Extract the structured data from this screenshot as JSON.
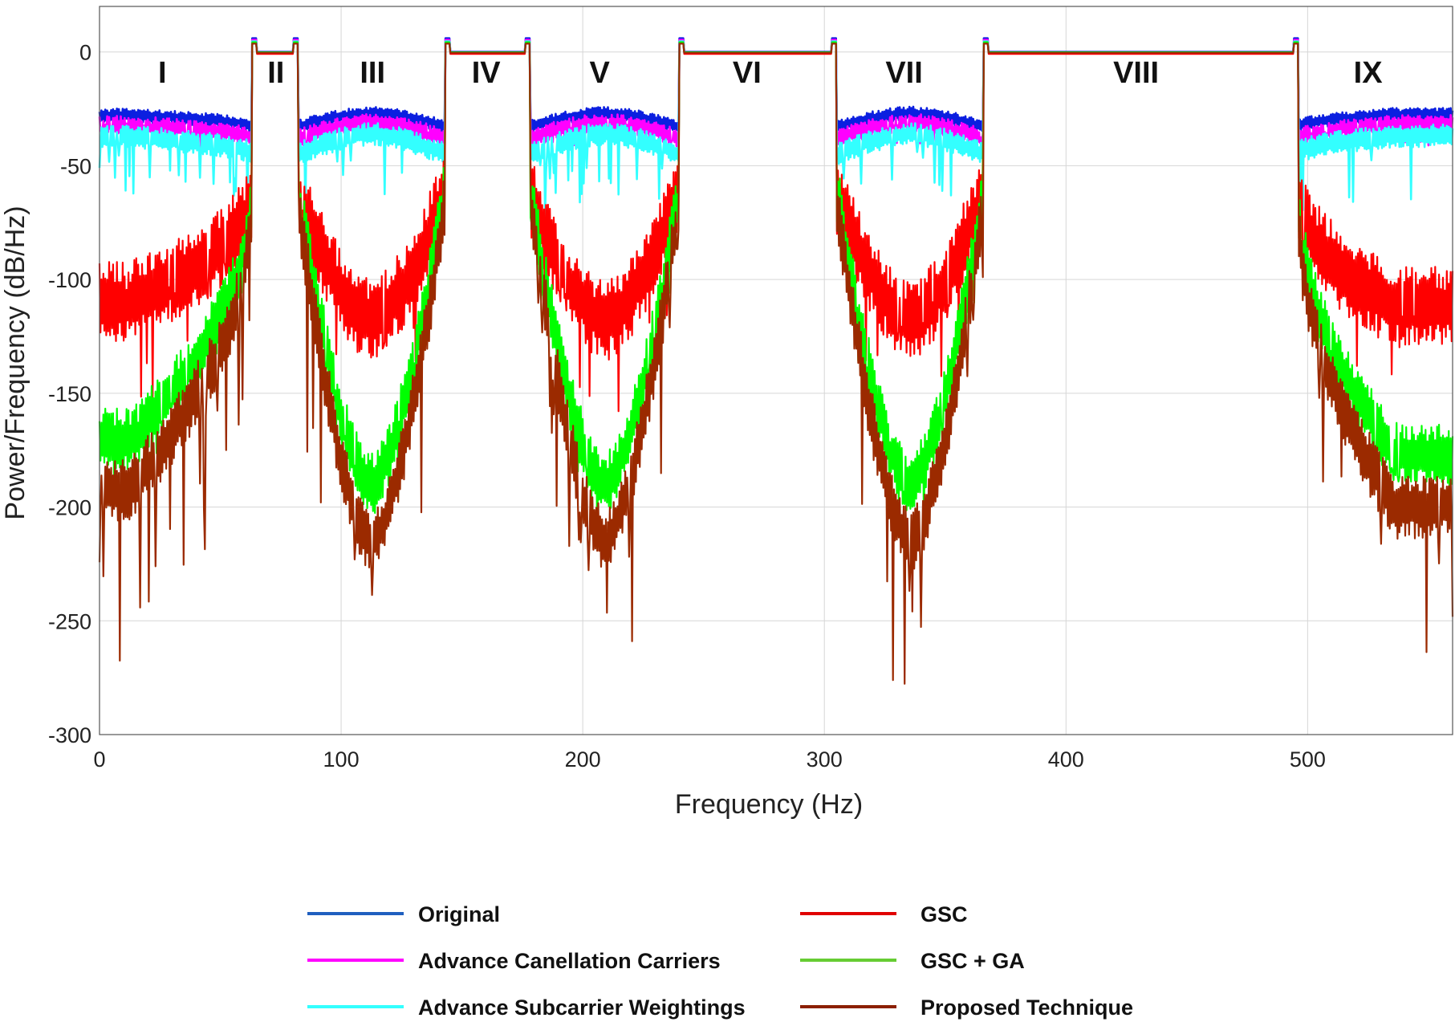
{
  "chart_data": {
    "type": "line",
    "title": "",
    "xlabel": "Frequency (Hz)",
    "ylabel": "Power/Frequency (dB/Hz)",
    "xlim": [
      0,
      560
    ],
    "ylim": [
      -300,
      20
    ],
    "xticks": [
      0,
      100,
      200,
      300,
      400,
      500
    ],
    "yticks": [
      0,
      -50,
      -100,
      -150,
      -200,
      -250,
      -300
    ],
    "grid": true,
    "legend_position": "bottom",
    "bands": [
      {
        "start": 63,
        "end": 82
      },
      {
        "start": 143,
        "end": 178
      },
      {
        "start": 240,
        "end": 305
      },
      {
        "start": 366,
        "end": 496
      }
    ],
    "regions": [
      {
        "label": "I",
        "x": 26
      },
      {
        "label": "II",
        "x": 73
      },
      {
        "label": "III",
        "x": 113
      },
      {
        "label": "IV",
        "x": 160
      },
      {
        "label": "V",
        "x": 207
      },
      {
        "label": "VI",
        "x": 268
      },
      {
        "label": "VII",
        "x": 333
      },
      {
        "label": "VIII",
        "x": 429
      },
      {
        "label": "IX",
        "x": 525
      }
    ],
    "series": [
      {
        "name": "Original",
        "color": "#0b1fe0",
        "legend_color": "#1f5fbf",
        "edge_db": -33,
        "valley_db": -27,
        "min_db": -34,
        "ripple_db": 3,
        "spike_db": 0
      },
      {
        "name": "Advance Canellation Carriers",
        "color": "#ff00ff",
        "legend_color": "#ff00ff",
        "edge_db": -38,
        "valley_db": -31,
        "min_db": -40,
        "ripple_db": 4,
        "spike_db": 4
      },
      {
        "name": "Advance Subcarrier Weightings",
        "color": "#33ffff",
        "legend_color": "#33ffff",
        "edge_db": -45,
        "valley_db": -36,
        "min_db": -50,
        "ripple_db": 5,
        "spike_db": 18
      },
      {
        "name": "GSC",
        "color": "#ff0000",
        "legend_color": "#e00000",
        "edge_db": -62,
        "valley_db": -118,
        "min_db": -160,
        "ripple_db": 18,
        "spike_db": 20
      },
      {
        "name": "GSC + GA",
        "color": "#00ff00",
        "legend_color": "#66cc33",
        "edge_db": -60,
        "valley_db": -190,
        "min_db": -205,
        "ripple_db": 14,
        "spike_db": 15
      },
      {
        "name": "Proposed Technique",
        "color": "#9b2a00",
        "legend_color": "#8b1f00",
        "edge_db": -65,
        "valley_db": -215,
        "min_db": -225,
        "ripple_db": 14,
        "spike_db": 45
      }
    ]
  }
}
